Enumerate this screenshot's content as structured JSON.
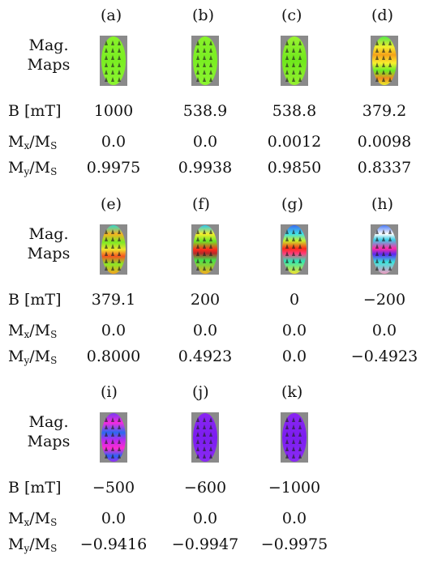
{
  "row_labels": {
    "mag_line1": "Mag.",
    "mag_line2": "Maps",
    "b": "B [mT]",
    "mx_main": "M",
    "mx_sub": "x",
    "my_main": "M",
    "my_sub": "y",
    "ms_main": "M",
    "ms_sub": "S"
  },
  "panels": [
    {
      "tag": "(a)",
      "b": "1000",
      "mx": "0.0",
      "my": "0.9975",
      "scheme": "green"
    },
    {
      "tag": "(b)",
      "b": "538.9",
      "mx": "0.0",
      "my": "0.9938",
      "scheme": "green"
    },
    {
      "tag": "(c)",
      "b": "538.8",
      "mx": "0.0012",
      "my": "0.9850",
      "scheme": "green2"
    },
    {
      "tag": "(d)",
      "b": "379.2",
      "mx": "0.0098",
      "my": "0.8337",
      "scheme": "yellowred"
    },
    {
      "tag": "(e)",
      "b": "379.1",
      "mx": "0.0",
      "my": "0.8000",
      "scheme": "rainbow1"
    },
    {
      "tag": "(f)",
      "b": "200",
      "mx": "0.0",
      "my": "0.4923",
      "scheme": "rainbow2"
    },
    {
      "tag": "(g)",
      "b": "0",
      "mx": "0.0",
      "my": "0.0",
      "scheme": "rainbow3"
    },
    {
      "tag": "(h)",
      "b": "−200",
      "mx": "0.0",
      "my": "−0.4923",
      "scheme": "rainbow4"
    },
    {
      "tag": "(i)",
      "b": "−500",
      "mx": "0.0",
      "my": "−0.9416",
      "scheme": "bluemag"
    },
    {
      "tag": "(j)",
      "b": "−600",
      "mx": "0.0",
      "my": "−0.9947",
      "scheme": "purple"
    },
    {
      "tag": "(k)",
      "b": "−1000",
      "mx": "0.0",
      "my": "−0.9975",
      "scheme": "purple"
    }
  ]
}
